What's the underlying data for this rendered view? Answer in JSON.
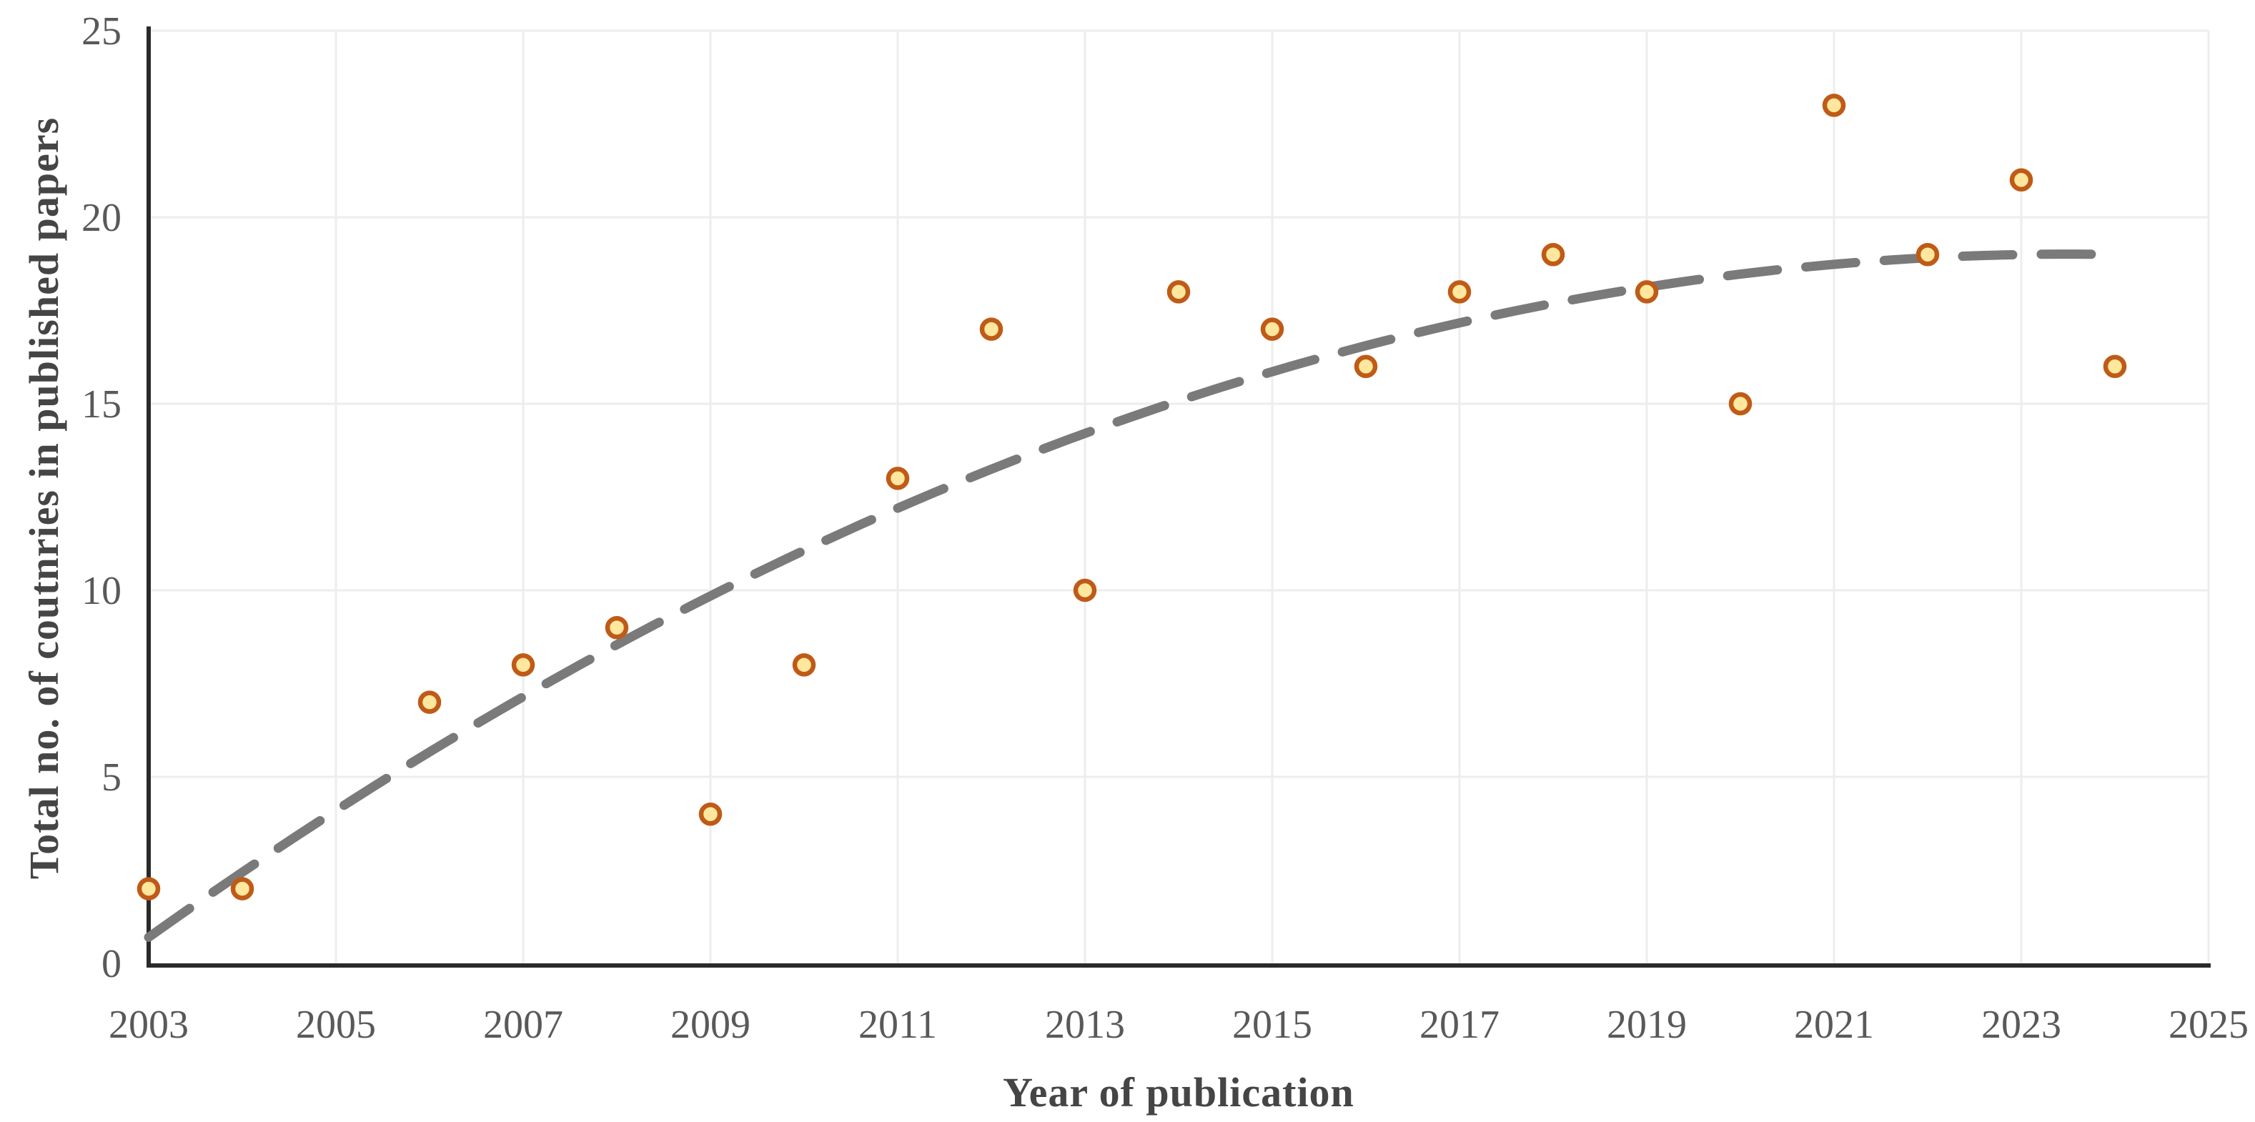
{
  "chart_data": {
    "type": "scatter",
    "title": "",
    "xlabel": "Year of publication",
    "ylabel": "Total no. of coutnries in published papers",
    "xlim": [
      2003,
      2025
    ],
    "ylim": [
      0,
      25
    ],
    "x_ticks": [
      "2003",
      "2005",
      "2007",
      "2009",
      "2011",
      "2013",
      "2015",
      "2017",
      "2019",
      "2021",
      "2023",
      "2025"
    ],
    "y_ticks": [
      "0",
      "5",
      "10",
      "15",
      "20",
      "25"
    ],
    "grid": true,
    "legend_position": "none",
    "points": [
      {
        "x": 2003,
        "y": 2
      },
      {
        "x": 2004,
        "y": 2
      },
      {
        "x": 2006,
        "y": 7
      },
      {
        "x": 2007,
        "y": 8
      },
      {
        "x": 2008,
        "y": 9
      },
      {
        "x": 2009,
        "y": 4
      },
      {
        "x": 2010,
        "y": 8
      },
      {
        "x": 2011,
        "y": 13
      },
      {
        "x": 2012,
        "y": 17
      },
      {
        "x": 2013,
        "y": 10
      },
      {
        "x": 2014,
        "y": 18
      },
      {
        "x": 2015,
        "y": 17
      },
      {
        "x": 2016,
        "y": 16
      },
      {
        "x": 2017,
        "y": 18
      },
      {
        "x": 2018,
        "y": 19
      },
      {
        "x": 2019,
        "y": 18
      },
      {
        "x": 2020,
        "y": 15
      },
      {
        "x": 2021,
        "y": 23
      },
      {
        "x": 2022,
        "y": 19
      },
      {
        "x": 2023,
        "y": 21
      },
      {
        "x": 2024,
        "y": 16
      }
    ],
    "trendline": {
      "style": "dashed",
      "shape": "quadratic",
      "equation": "y = 0.7 + 1.786*(x-2003) - 0.04355*(x-2003)^2",
      "c0": 0.7,
      "c1": 1.786,
      "c2": -0.04355,
      "x_start": 2003,
      "x_end": 2024.05
    },
    "marker": {
      "shape": "circle",
      "radius": 13,
      "stroke_width": 6.5
    },
    "colors": {
      "marker_fill": "#FFE79E",
      "marker_stroke": "#BF5B17",
      "trendline": "#7A7A7A",
      "gridline": "#EDEDED",
      "axis_line": "#2A2A2A",
      "tick_label": "#595959",
      "axis_title": "#454545",
      "background": "#FFFFFF"
    }
  }
}
